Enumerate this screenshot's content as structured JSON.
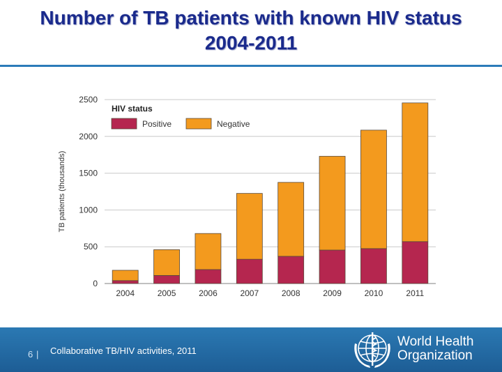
{
  "slide": {
    "title_line1": "Number of TB patients with known HIV status",
    "title_line2": "2004-2011"
  },
  "footer": {
    "page_number": "6",
    "separator": "|",
    "text": "Collaborative TB/HIV activities, 2011",
    "org_line1": "World Health",
    "org_line2": "Organization"
  },
  "colors": {
    "positive": "#b5264f",
    "negative": "#f39a1e",
    "title": "#1a2a8c",
    "footer": "#2b79b3"
  },
  "chart_data": {
    "type": "bar",
    "stacked": true,
    "categories": [
      "2004",
      "2005",
      "2006",
      "2007",
      "2008",
      "2009",
      "2010",
      "2011"
    ],
    "series": [
      {
        "name": "Positive",
        "values": [
          40,
          110,
          190,
          330,
          370,
          455,
          475,
          570
        ]
      },
      {
        "name": "Negative",
        "values": [
          140,
          350,
          490,
          895,
          1005,
          1275,
          1610,
          1885
        ]
      }
    ],
    "ylabel": "TB patients (thousands)",
    "xlabel": "",
    "ylim": [
      0,
      2500
    ],
    "yticks": [
      0,
      500,
      1000,
      1500,
      2000,
      2500
    ],
    "legend_title": "HIV status",
    "legend_position": "top-left",
    "grid": true
  }
}
